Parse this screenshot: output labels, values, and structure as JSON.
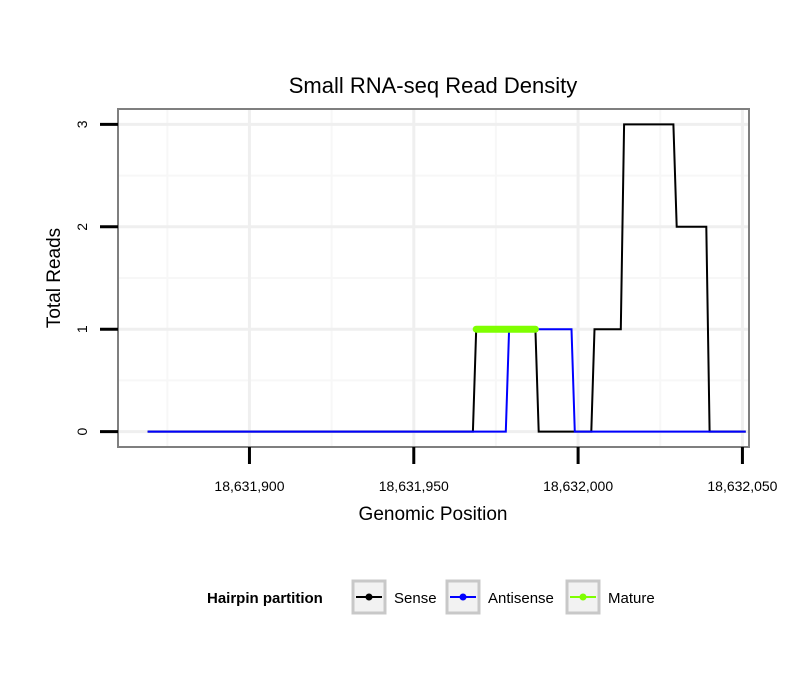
{
  "chart_data": {
    "type": "line",
    "title": "Small RNA-seq Read Density",
    "xlabel": "Genomic Position",
    "ylabel": "Total Reads",
    "xlim": [
      18631860,
      18632052
    ],
    "ylim": [
      -0.15,
      3.15
    ],
    "xticks": [
      18631900,
      18631950,
      18632000,
      18632050
    ],
    "xtick_labels": [
      "18,631,900",
      "18,631,950",
      "18,632,000",
      "18,632,050"
    ],
    "yticks": [
      0,
      1,
      2,
      3
    ],
    "ytick_labels": [
      "0",
      "1",
      "2",
      "3"
    ],
    "grid": true,
    "series": [
      {
        "name": "Sense",
        "color": "#000000",
        "x": [
          18631869,
          18631968,
          18631969,
          18631987,
          18631988,
          18632004,
          18632005,
          18632013,
          18632014,
          18632029,
          18632030,
          18632039,
          18632040,
          18632051
        ],
        "y": [
          0,
          0,
          1,
          1,
          0,
          0,
          1,
          1,
          3,
          3,
          2,
          2,
          0,
          0
        ]
      },
      {
        "name": "Antisense",
        "color": "#0000ff",
        "x": [
          18631869,
          18631978,
          18631979,
          18631998,
          18631999,
          18632051
        ],
        "y": [
          0,
          0,
          1,
          1,
          0,
          0
        ]
      },
      {
        "name": "Mature",
        "color": "#7fff00",
        "x": [
          18631969,
          18631987
        ],
        "y": [
          1,
          1
        ]
      }
    ],
    "legend": {
      "position": "bottom",
      "title": "Hairpin partition",
      "entries": [
        "Sense",
        "Antisense",
        "Mature"
      ]
    }
  }
}
